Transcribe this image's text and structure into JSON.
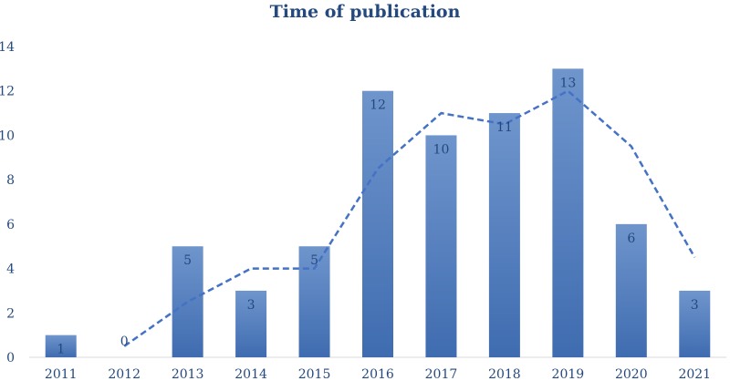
{
  "chart_data": {
    "type": "bar",
    "title": "Time of publication",
    "xlabel": "",
    "ylabel": "",
    "categories": [
      "2011",
      "2012",
      "2013",
      "2014",
      "2015",
      "2016",
      "2017",
      "2018",
      "2019",
      "2020",
      "2021"
    ],
    "values": [
      1,
      0,
      5,
      3,
      5,
      12,
      10,
      11,
      13,
      6,
      3
    ],
    "ylim": [
      0,
      14
    ],
    "yticks": [
      0,
      2,
      4,
      6,
      8,
      10,
      12,
      14
    ],
    "data_labels": true,
    "grid": false,
    "legend": "none",
    "trendline": {
      "style": "dashed",
      "type": "moving-average-2",
      "values": [
        null,
        0.5,
        2.5,
        4,
        4,
        8.5,
        11,
        10.5,
        12,
        9.5,
        4.5
      ]
    },
    "colors": {
      "bar_top": "#6f95cc",
      "bar_bottom": "#3f6cb0",
      "trend": "#4472c4",
      "title": "#24497e",
      "axis_text": "#24497e"
    }
  }
}
